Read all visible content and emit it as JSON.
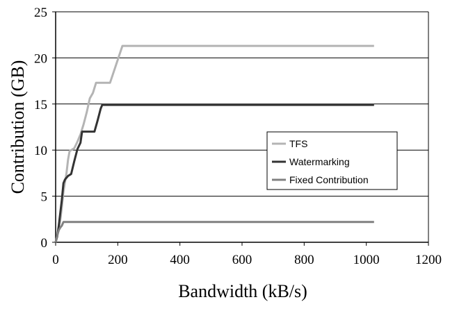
{
  "chart_data": {
    "type": "line",
    "title": "",
    "xlabel": "Bandwidth (kB/s)",
    "ylabel": "Contribution (GB)",
    "xlim": [
      0,
      1200
    ],
    "ylim": [
      0,
      25
    ],
    "xticks": [
      0,
      200,
      400,
      600,
      800,
      1000,
      1200
    ],
    "yticks": [
      0,
      5,
      10,
      15,
      20,
      25
    ],
    "grid": "horizontal",
    "legend_position": "right",
    "series": [
      {
        "name": "TFS",
        "color": "#b4b4b4",
        "x": [
          0,
          5,
          10,
          15,
          20,
          25,
          30,
          35,
          40,
          45,
          55,
          60,
          70,
          80,
          90,
          100,
          110,
          120,
          130,
          155,
          175,
          200,
          215,
          1025
        ],
        "y": [
          0,
          0.7,
          1.5,
          2.4,
          3.8,
          5.5,
          6.5,
          7.5,
          9.0,
          9.9,
          10.1,
          10.2,
          10.9,
          11.7,
          12.8,
          14.1,
          15.6,
          16.2,
          17.3,
          17.3,
          17.3,
          19.8,
          21.3,
          21.3
        ]
      },
      {
        "name": "Watermarking",
        "color": "#333333",
        "x": [
          0,
          5,
          10,
          15,
          20,
          25,
          30,
          35,
          40,
          50,
          60,
          70,
          80,
          85,
          95,
          110,
          125,
          135,
          145,
          150,
          1025
        ],
        "y": [
          0,
          0.6,
          1.8,
          3.2,
          4.6,
          6.4,
          6.8,
          7.0,
          7.2,
          7.4,
          8.8,
          10.1,
          10.8,
          12.0,
          12.0,
          12.0,
          12.0,
          13.2,
          14.5,
          14.9,
          14.9
        ]
      },
      {
        "name": "Fixed Contribution",
        "color": "#808080",
        "x": [
          0,
          5,
          10,
          15,
          20,
          25,
          30,
          1025
        ],
        "y": [
          0,
          0.7,
          1.3,
          1.6,
          1.8,
          2.2,
          2.2,
          2.2
        ]
      }
    ]
  }
}
